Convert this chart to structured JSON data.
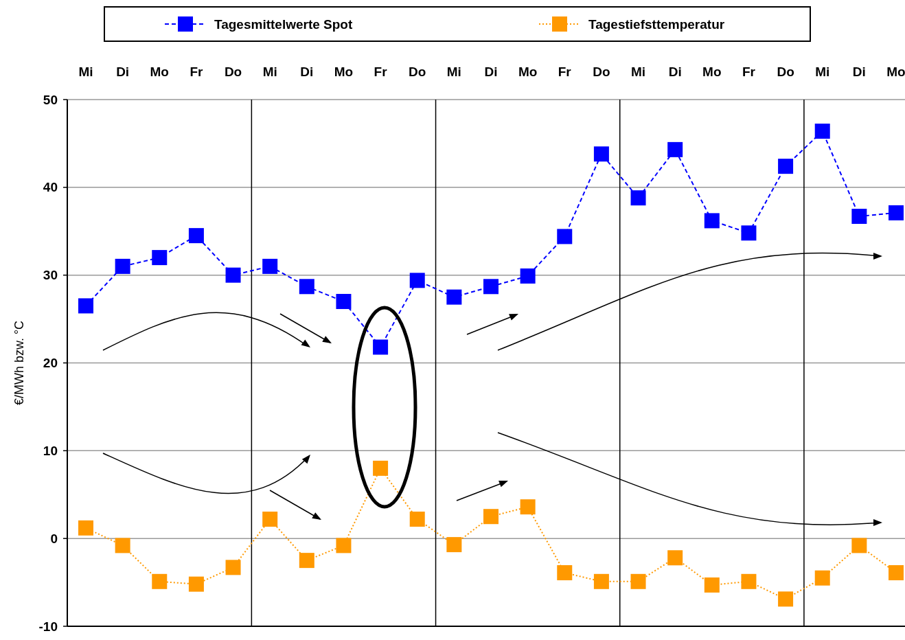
{
  "chart_data": {
    "type": "line",
    "ylabel": "€/MWh bzw. °C",
    "categories": [
      "Mi",
      "Di",
      "Mo",
      "Fr",
      "Do",
      "Mi",
      "Di",
      "Mo",
      "Fr",
      "Do",
      "Mi",
      "Di",
      "Mo",
      "Fr",
      "Do",
      "Mi",
      "Di",
      "Mo",
      "Fr",
      "Do",
      "Mi",
      "Di",
      "Mo"
    ],
    "series": [
      {
        "name": "Tagesmittelwerte Spot",
        "color": "#0000ff",
        "line_style": "dashed",
        "values": [
          26.5,
          31.0,
          32.0,
          34.5,
          30.0,
          31.0,
          28.7,
          27.0,
          21.8,
          29.4,
          27.5,
          28.7,
          29.9,
          34.4,
          43.8,
          38.8,
          44.3,
          36.2,
          34.8,
          42.4,
          46.4,
          36.7,
          37.1
        ]
      },
      {
        "name": "Tagestiefsttemperatur",
        "color": "#ff9900",
        "line_style": "dotted",
        "values": [
          1.2,
          -0.8,
          -4.9,
          -5.2,
          -3.3,
          2.2,
          -2.5,
          -0.8,
          8.0,
          2.2,
          -0.7,
          2.5,
          3.6,
          -3.9,
          -4.9,
          -4.9,
          -2.2,
          -5.3,
          -4.9,
          -6.9,
          -4.5,
          -0.8,
          -3.9
        ]
      }
    ],
    "ylim": [
      -10,
      50
    ],
    "yticks": [
      -10,
      0,
      10,
      20,
      30,
      40,
      50
    ],
    "grid": "y",
    "legend": "top",
    "marker": "square"
  }
}
